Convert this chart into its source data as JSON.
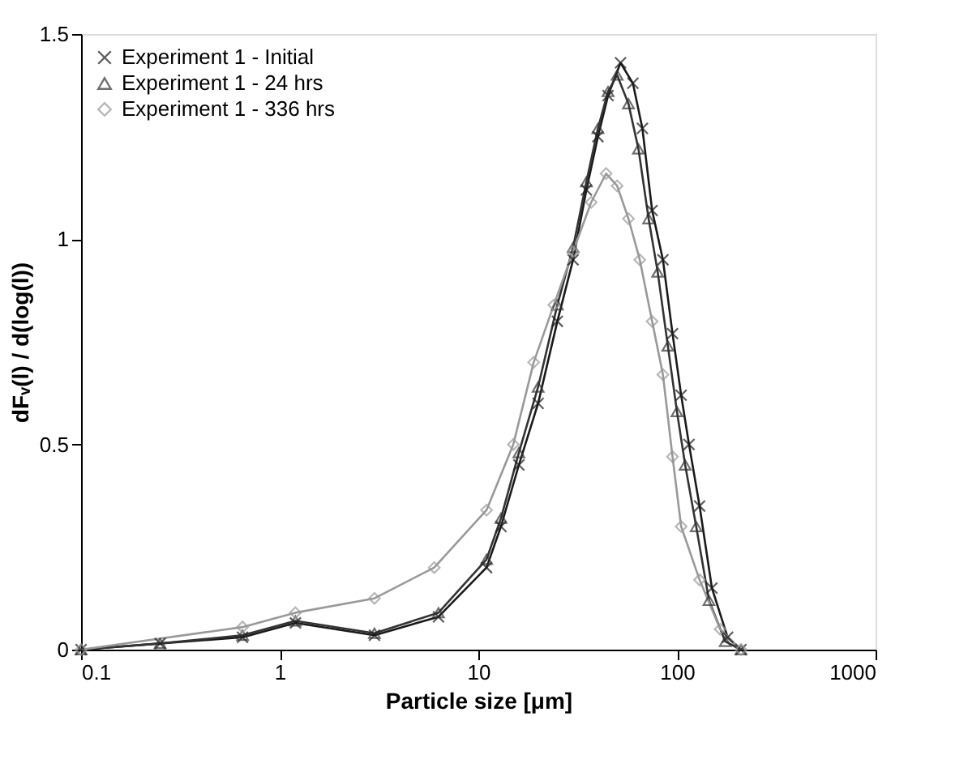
{
  "chart_data": {
    "type": "line",
    "xlabel": "Particle size [μm]",
    "ylabel": "dFᵥ(l) / d(log(l))",
    "log": "x",
    "xlim": [
      0.1,
      1000
    ],
    "xticks": [
      0.1,
      1,
      10,
      100,
      1000
    ],
    "ylim": [
      0,
      1.5
    ],
    "yticks": [
      0,
      0.5,
      1,
      1.5
    ],
    "grid": false,
    "legend": "top left",
    "series": [
      {
        "name": "Experiment 1 - Initial",
        "color": "#1a1a1a",
        "marker": "cross",
        "line_style": "solid",
        "x": [
          0.1,
          0.25,
          0.65,
          1.2,
          3,
          6.3,
          11,
          13,
          16,
          20,
          25,
          30,
          35,
          40,
          45,
          52,
          60,
          67,
          75,
          85,
          95,
          105,
          115,
          130,
          150,
          180,
          210
        ],
        "values": [
          0,
          0.015,
          0.03,
          0.065,
          0.035,
          0.08,
          0.2,
          0.3,
          0.45,
          0.6,
          0.8,
          0.95,
          1.12,
          1.25,
          1.35,
          1.43,
          1.38,
          1.27,
          1.07,
          0.95,
          0.77,
          0.62,
          0.5,
          0.35,
          0.15,
          0.03,
          0
        ]
      },
      {
        "name": "Experiment 1 - 24 hrs",
        "color": "#333333",
        "marker": "triangle",
        "line_style": "solid",
        "x": [
          0.1,
          0.25,
          0.65,
          1.2,
          3,
          6.3,
          11,
          13,
          16,
          20,
          25,
          30,
          35,
          40,
          45,
          50,
          57,
          64,
          72,
          80,
          90,
          100,
          110,
          125,
          145,
          175,
          210
        ],
        "values": [
          0,
          0.015,
          0.035,
          0.07,
          0.04,
          0.09,
          0.22,
          0.32,
          0.48,
          0.64,
          0.84,
          0.98,
          1.14,
          1.27,
          1.36,
          1.4,
          1.33,
          1.22,
          1.05,
          0.92,
          0.74,
          0.58,
          0.45,
          0.3,
          0.12,
          0.02,
          0
        ]
      },
      {
        "name": "Experiment 1 - 336 hrs",
        "color": "#999999",
        "marker": "diamond",
        "line_style": "solid",
        "x": [
          0.1,
          0.65,
          1.2,
          3,
          6,
          11,
          15,
          19,
          24,
          30,
          37,
          44,
          50,
          57,
          65,
          75,
          85,
          95,
          105,
          130,
          165,
          210
        ],
        "values": [
          0,
          0.055,
          0.09,
          0.125,
          0.2,
          0.34,
          0.5,
          0.7,
          0.84,
          0.97,
          1.09,
          1.16,
          1.13,
          1.05,
          0.95,
          0.8,
          0.67,
          0.47,
          0.3,
          0.17,
          0.05,
          0
        ]
      }
    ]
  }
}
